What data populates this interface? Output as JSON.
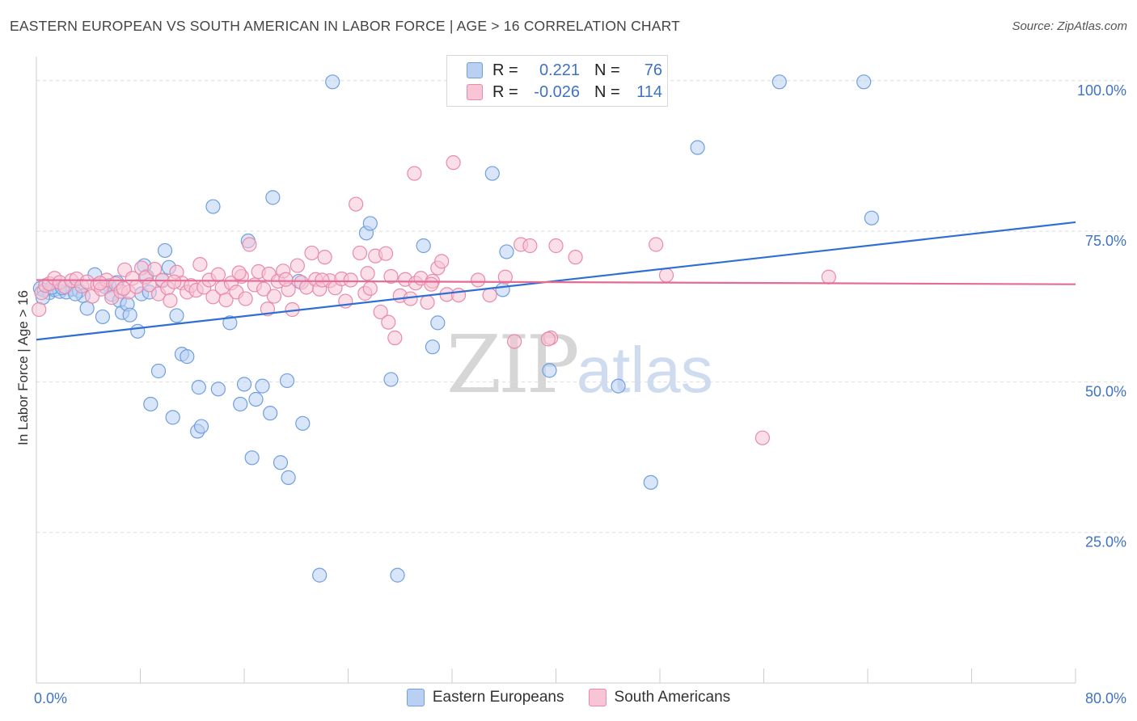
{
  "title": "EASTERN EUROPEAN VS SOUTH AMERICAN IN LABOR FORCE | AGE > 16 CORRELATION CHART",
  "source": "Source: ZipAtlas.com",
  "watermark": {
    "zip": "ZIP",
    "atlas": "atlas"
  },
  "legend_stats": [
    {
      "r_label": "R =",
      "r_value": "0.221",
      "n_label": "N =",
      "n_value": "76"
    },
    {
      "r_label": "R =",
      "r_value": "-0.026",
      "n_label": "N =",
      "n_value": "114"
    }
  ],
  "colors": {
    "blue_fill": "#b9d0f3",
    "blue_stroke": "#6f9fe0",
    "blue_line": "#2f6fd3",
    "pink_fill": "#f7c5d6",
    "pink_stroke": "#e98aaa",
    "pink_line": "#e46b93",
    "grid": "#dcdcdc",
    "axis": "#cccccc",
    "tick_text": "#3e73c4"
  },
  "chart_data": {
    "type": "scatter",
    "title": "EASTERN EUROPEAN VS SOUTH AMERICAN IN LABOR FORCE | AGE > 16 CORRELATION CHART",
    "xlabel": "",
    "ylabel": "In Labor Force | Age > 16",
    "xlim": [
      0,
      80
    ],
    "ylim": [
      0,
      104
    ],
    "x_tick_labels": [
      "0.0%",
      "80.0%"
    ],
    "y_ticks": [
      25,
      50,
      75,
      100
    ],
    "y_tick_labels": [
      "25.0%",
      "50.0%",
      "75.0%",
      "100.0%"
    ],
    "grid": true,
    "legend_position": "bottom",
    "series": [
      {
        "name": "Eastern Europeans",
        "trend": {
          "x": [
            0,
            80
          ],
          "y": [
            57.0,
            76.5
          ]
        },
        "points": [
          [
            0.3,
            65.5
          ],
          [
            0.6,
            65.2
          ],
          [
            1.0,
            64.8
          ],
          [
            1.4,
            65.3
          ],
          [
            1.8,
            65.0
          ],
          [
            2.3,
            64.9
          ],
          [
            2.8,
            65.4
          ],
          [
            3.3,
            65.1
          ],
          [
            3.6,
            64.3
          ],
          [
            3.9,
            62.2
          ],
          [
            4.5,
            67.8
          ],
          [
            5.1,
            60.8
          ],
          [
            5.6,
            66.0
          ],
          [
            5.8,
            64.5
          ],
          [
            6.2,
            66.5
          ],
          [
            6.4,
            63.5
          ],
          [
            6.6,
            61.5
          ],
          [
            7.0,
            62.9
          ],
          [
            7.2,
            61.1
          ],
          [
            7.8,
            58.4
          ],
          [
            8.1,
            64.6
          ],
          [
            8.3,
            69.3
          ],
          [
            8.7,
            64.9
          ],
          [
            9.4,
            51.8
          ],
          [
            8.8,
            46.3
          ],
          [
            9.7,
            66.8
          ],
          [
            9.9,
            71.8
          ],
          [
            10.2,
            69.0
          ],
          [
            10.5,
            44.1
          ],
          [
            10.8,
            61.0
          ],
          [
            11.2,
            54.6
          ],
          [
            11.6,
            54.2
          ],
          [
            12.4,
            41.8
          ],
          [
            12.7,
            42.6
          ],
          [
            12.5,
            49.1
          ],
          [
            13.6,
            79.1
          ],
          [
            14.0,
            48.8
          ],
          [
            14.9,
            59.8
          ],
          [
            15.7,
            46.3
          ],
          [
            16.0,
            49.6
          ],
          [
            16.3,
            73.4
          ],
          [
            16.6,
            37.4
          ],
          [
            16.9,
            47.1
          ],
          [
            17.4,
            49.3
          ],
          [
            18.0,
            44.8
          ],
          [
            18.2,
            80.6
          ],
          [
            18.8,
            36.6
          ],
          [
            19.3,
            50.2
          ],
          [
            19.4,
            34.1
          ],
          [
            20.2,
            66.7
          ],
          [
            20.5,
            43.1
          ],
          [
            21.8,
            17.9
          ],
          [
            22.8,
            99.8
          ],
          [
            25.4,
            74.7
          ],
          [
            25.7,
            76.3
          ],
          [
            27.3,
            50.4
          ],
          [
            27.8,
            17.9
          ],
          [
            29.8,
            72.6
          ],
          [
            30.5,
            55.8
          ],
          [
            30.9,
            59.8
          ],
          [
            35.1,
            84.6
          ],
          [
            35.9,
            65.3
          ],
          [
            36.2,
            71.6
          ],
          [
            39.5,
            51.9
          ],
          [
            44.8,
            49.3
          ],
          [
            47.3,
            33.3
          ],
          [
            50.9,
            88.9
          ],
          [
            57.2,
            99.8
          ],
          [
            63.7,
            99.8
          ],
          [
            64.3,
            77.2
          ],
          [
            0.5,
            64.0
          ],
          [
            1.2,
            65.7
          ],
          [
            2.0,
            65.6
          ],
          [
            3.0,
            64.6
          ],
          [
            5.3,
            65.8
          ],
          [
            8.5,
            67.5
          ]
        ]
      },
      {
        "name": "South Americans",
        "trend": {
          "x": [
            0,
            80
          ],
          "y": [
            66.9,
            66.2
          ]
        },
        "points": [
          [
            0.2,
            62.0
          ],
          [
            0.4,
            64.8
          ],
          [
            0.7,
            66.0
          ],
          [
            1.0,
            66.3
          ],
          [
            1.4,
            67.2
          ],
          [
            1.8,
            66.5
          ],
          [
            2.2,
            65.8
          ],
          [
            2.7,
            66.8
          ],
          [
            3.1,
            67.1
          ],
          [
            3.5,
            65.9
          ],
          [
            3.9,
            66.6
          ],
          [
            4.3,
            64.2
          ],
          [
            4.7,
            66.1
          ],
          [
            5.0,
            65.4
          ],
          [
            5.4,
            66.9
          ],
          [
            5.8,
            64.0
          ],
          [
            6.1,
            66.3
          ],
          [
            6.5,
            65.0
          ],
          [
            6.8,
            68.6
          ],
          [
            7.1,
            64.9
          ],
          [
            7.4,
            67.2
          ],
          [
            7.7,
            65.8
          ],
          [
            8.1,
            68.9
          ],
          [
            8.4,
            67.3
          ],
          [
            8.7,
            66.1
          ],
          [
            9.1,
            68.7
          ],
          [
            9.4,
            64.6
          ],
          [
            9.7,
            66.9
          ],
          [
            10.1,
            65.6
          ],
          [
            10.3,
            63.5
          ],
          [
            10.8,
            68.2
          ],
          [
            11.2,
            66.4
          ],
          [
            11.6,
            64.9
          ],
          [
            11.9,
            66.0
          ],
          [
            12.3,
            65.2
          ],
          [
            12.6,
            69.5
          ],
          [
            12.9,
            65.7
          ],
          [
            13.3,
            66.9
          ],
          [
            13.6,
            64.1
          ],
          [
            14.0,
            67.8
          ],
          [
            14.3,
            65.6
          ],
          [
            14.6,
            63.6
          ],
          [
            15.0,
            66.4
          ],
          [
            15.4,
            64.9
          ],
          [
            15.8,
            67.5
          ],
          [
            16.1,
            63.8
          ],
          [
            16.4,
            72.8
          ],
          [
            16.8,
            66.1
          ],
          [
            17.1,
            68.3
          ],
          [
            17.5,
            65.4
          ],
          [
            17.9,
            67.9
          ],
          [
            18.3,
            64.2
          ],
          [
            18.6,
            66.7
          ],
          [
            19.0,
            68.4
          ],
          [
            19.4,
            65.3
          ],
          [
            19.7,
            62.0
          ],
          [
            20.1,
            69.3
          ],
          [
            20.4,
            66.5
          ],
          [
            20.8,
            65.7
          ],
          [
            21.2,
            71.4
          ],
          [
            21.5,
            67.0
          ],
          [
            21.8,
            65.4
          ],
          [
            22.2,
            70.7
          ],
          [
            22.6,
            66.8
          ],
          [
            23.0,
            65.6
          ],
          [
            23.5,
            67.1
          ],
          [
            23.8,
            63.4
          ],
          [
            24.2,
            66.9
          ],
          [
            24.6,
            79.5
          ],
          [
            24.9,
            71.4
          ],
          [
            25.3,
            64.7
          ],
          [
            25.7,
            65.5
          ],
          [
            26.1,
            70.9
          ],
          [
            26.5,
            61.6
          ],
          [
            26.9,
            71.3
          ],
          [
            27.3,
            67.5
          ],
          [
            27.6,
            57.3
          ],
          [
            28.0,
            64.3
          ],
          [
            28.4,
            67.0
          ],
          [
            28.8,
            63.8
          ],
          [
            29.2,
            66.4
          ],
          [
            29.6,
            67.2
          ],
          [
            30.1,
            63.2
          ],
          [
            30.5,
            66.7
          ],
          [
            30.9,
            68.9
          ],
          [
            31.2,
            70.0
          ],
          [
            31.6,
            64.5
          ],
          [
            32.1,
            86.4
          ],
          [
            29.1,
            84.6
          ],
          [
            34.0,
            66.9
          ],
          [
            34.9,
            64.4
          ],
          [
            36.1,
            67.4
          ],
          [
            36.8,
            56.7
          ],
          [
            37.3,
            72.8
          ],
          [
            38.0,
            72.6
          ],
          [
            39.6,
            57.3
          ],
          [
            40.0,
            72.6
          ],
          [
            41.5,
            70.7
          ],
          [
            47.7,
            72.8
          ],
          [
            48.5,
            67.7
          ],
          [
            55.9,
            40.7
          ],
          [
            61.0,
            67.4
          ],
          [
            30.4,
            66.2
          ],
          [
            22.0,
            66.9
          ],
          [
            4.9,
            66.4
          ],
          [
            6.7,
            65.5
          ],
          [
            10.6,
            66.6
          ],
          [
            15.6,
            68.1
          ],
          [
            17.8,
            62.1
          ],
          [
            19.2,
            67.0
          ],
          [
            25.5,
            68.0
          ],
          [
            27.1,
            59.9
          ],
          [
            32.5,
            64.4
          ],
          [
            39.4,
            57.1
          ]
        ]
      }
    ]
  }
}
